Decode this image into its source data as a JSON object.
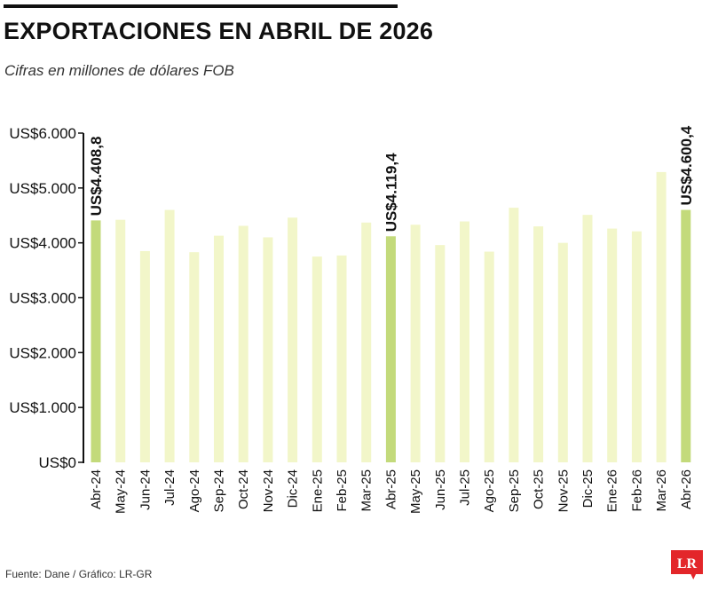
{
  "header": {
    "title": "EXPORTACIONES EN ABRIL DE 2026",
    "subtitle": "Cifras en millones de dólares FOB"
  },
  "footer": {
    "source": "Fuente: Dane / Gráfico: LR-GR",
    "logo_text": "LR"
  },
  "colors": {
    "bar": "#f2f6c9",
    "highlight": "#c3da7b",
    "axis": "#111111"
  },
  "chart_data": {
    "type": "bar",
    "title": "EXPORTACIONES EN ABRIL DE 2026",
    "subtitle": "Cifras en millones de dólares FOB",
    "xlabel": "",
    "ylabel": "",
    "ylim": [
      0,
      6000
    ],
    "yticks": [
      0,
      1000,
      2000,
      3000,
      4000,
      5000,
      6000
    ],
    "ytick_labels": [
      "US$0",
      "US$1.000",
      "US$2.000",
      "US$3.000",
      "US$4.000",
      "US$5.000",
      "US$6.000"
    ],
    "grid": false,
    "legend": "none",
    "categories": [
      "Abr-24",
      "May-24",
      "Jun-24",
      "Jul-24",
      "Ago-24",
      "Sep-24",
      "Oct-24",
      "Nov-24",
      "Dic-24",
      "Ene-25",
      "Feb-25",
      "Mar-25",
      "Abr-25",
      "May-25",
      "Jun-25",
      "Jul-25",
      "Ago-25",
      "Sep-25",
      "Oct-25",
      "Nov-25",
      "Dic-25",
      "Ene-26",
      "Feb-26",
      "Mar-26",
      "Abr-26"
    ],
    "values": [
      4408.8,
      4420,
      3850,
      4600,
      3830,
      4130,
      4310,
      4100,
      4460,
      3750,
      3770,
      4370,
      4119.4,
      4330,
      3960,
      4390,
      3840,
      4640,
      4300,
      4000,
      4510,
      4260,
      4210,
      5290,
      4600.4
    ],
    "highlighted": [
      0,
      12,
      24
    ],
    "data_labels": [
      {
        "index": 0,
        "text": "US$4.408,8"
      },
      {
        "index": 12,
        "text": "US$4.119,4"
      },
      {
        "index": 24,
        "text": "US$4.600,4"
      }
    ]
  }
}
